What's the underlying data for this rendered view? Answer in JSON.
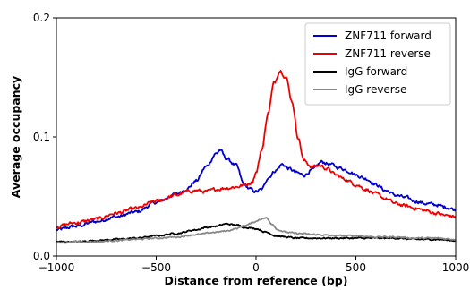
{
  "chart_data": {
    "type": "line",
    "xlabel": "Distance from reference (bp)",
    "ylabel": "Average occupancy",
    "xlim": [
      -1000,
      1000
    ],
    "ylim": [
      0,
      0.2
    ],
    "xticks": [
      -1000,
      -500,
      0,
      500,
      1000
    ],
    "xtick_labels": [
      "−1000",
      "−500",
      "0",
      "500",
      "1000"
    ],
    "yticks": [
      0,
      0.1,
      0.2
    ],
    "ytick_labels": [
      "0.0",
      "0.1",
      "0.2"
    ],
    "grid": false,
    "legend_position": "top-right",
    "series": [
      {
        "name": "ZNF711 forward",
        "color": "#0000cc",
        "points": [
          [
            -1000,
            0.022
          ],
          [
            -900,
            0.025
          ],
          [
            -800,
            0.029
          ],
          [
            -700,
            0.033
          ],
          [
            -600,
            0.037
          ],
          [
            -500,
            0.045
          ],
          [
            -400,
            0.052
          ],
          [
            -350,
            0.056
          ],
          [
            -300,
            0.063
          ],
          [
            -250,
            0.075
          ],
          [
            -200,
            0.086
          ],
          [
            -180,
            0.089
          ],
          [
            -150,
            0.082
          ],
          [
            -100,
            0.076
          ],
          [
            -60,
            0.06
          ],
          [
            -30,
            0.056
          ],
          [
            0,
            0.054
          ],
          [
            30,
            0.056
          ],
          [
            60,
            0.066
          ],
          [
            100,
            0.072
          ],
          [
            130,
            0.077
          ],
          [
            170,
            0.073
          ],
          [
            200,
            0.07
          ],
          [
            240,
            0.068
          ],
          [
            280,
            0.072
          ],
          [
            330,
            0.079
          ],
          [
            370,
            0.077
          ],
          [
            420,
            0.074
          ],
          [
            470,
            0.071
          ],
          [
            500,
            0.068
          ],
          [
            550,
            0.065
          ],
          [
            600,
            0.06
          ],
          [
            650,
            0.055
          ],
          [
            700,
            0.051
          ],
          [
            750,
            0.049
          ],
          [
            800,
            0.046
          ],
          [
            850,
            0.044
          ],
          [
            900,
            0.043
          ],
          [
            950,
            0.041
          ],
          [
            1000,
            0.039
          ]
        ]
      },
      {
        "name": "ZNF711 reverse",
        "color": "#ee0000",
        "points": [
          [
            -1000,
            0.025
          ],
          [
            -900,
            0.028
          ],
          [
            -800,
            0.031
          ],
          [
            -700,
            0.036
          ],
          [
            -600,
            0.04
          ],
          [
            -500,
            0.046
          ],
          [
            -400,
            0.051
          ],
          [
            -350,
            0.054
          ],
          [
            -300,
            0.055
          ],
          [
            -250,
            0.054
          ],
          [
            -200,
            0.056
          ],
          [
            -150,
            0.057
          ],
          [
            -100,
            0.058
          ],
          [
            -50,
            0.06
          ],
          [
            -20,
            0.062
          ],
          [
            0,
            0.07
          ],
          [
            30,
            0.09
          ],
          [
            60,
            0.12
          ],
          [
            90,
            0.145
          ],
          [
            120,
            0.156
          ],
          [
            150,
            0.15
          ],
          [
            180,
            0.13
          ],
          [
            210,
            0.1
          ],
          [
            240,
            0.08
          ],
          [
            280,
            0.075
          ],
          [
            320,
            0.076
          ],
          [
            360,
            0.073
          ],
          [
            400,
            0.068
          ],
          [
            450,
            0.064
          ],
          [
            500,
            0.06
          ],
          [
            550,
            0.056
          ],
          [
            600,
            0.052
          ],
          [
            650,
            0.048
          ],
          [
            700,
            0.044
          ],
          [
            750,
            0.042
          ],
          [
            800,
            0.04
          ],
          [
            850,
            0.038
          ],
          [
            900,
            0.036
          ],
          [
            950,
            0.034
          ],
          [
            1000,
            0.033
          ]
        ]
      },
      {
        "name": "IgG forward",
        "color": "#000000",
        "points": [
          [
            -1000,
            0.012
          ],
          [
            -900,
            0.012
          ],
          [
            -800,
            0.013
          ],
          [
            -700,
            0.014
          ],
          [
            -600,
            0.015
          ],
          [
            -500,
            0.017
          ],
          [
            -400,
            0.019
          ],
          [
            -300,
            0.022
          ],
          [
            -250,
            0.024
          ],
          [
            -200,
            0.025
          ],
          [
            -150,
            0.027
          ],
          [
            -100,
            0.026
          ],
          [
            -50,
            0.024
          ],
          [
            0,
            0.023
          ],
          [
            50,
            0.02
          ],
          [
            100,
            0.017
          ],
          [
            150,
            0.016
          ],
          [
            200,
            0.015
          ],
          [
            300,
            0.015
          ],
          [
            400,
            0.015
          ],
          [
            500,
            0.015
          ],
          [
            600,
            0.015
          ],
          [
            700,
            0.015
          ],
          [
            800,
            0.014
          ],
          [
            900,
            0.014
          ],
          [
            1000,
            0.013
          ]
        ]
      },
      {
        "name": "IgG reverse",
        "color": "#888888",
        "points": [
          [
            -1000,
            0.011
          ],
          [
            -900,
            0.012
          ],
          [
            -800,
            0.012
          ],
          [
            -700,
            0.013
          ],
          [
            -600,
            0.014
          ],
          [
            -500,
            0.015
          ],
          [
            -400,
            0.016
          ],
          [
            -300,
            0.018
          ],
          [
            -200,
            0.02
          ],
          [
            -150,
            0.021
          ],
          [
            -100,
            0.023
          ],
          [
            -50,
            0.026
          ],
          [
            0,
            0.029
          ],
          [
            20,
            0.031
          ],
          [
            50,
            0.032
          ],
          [
            80,
            0.027
          ],
          [
            110,
            0.022
          ],
          [
            150,
            0.02
          ],
          [
            200,
            0.019
          ],
          [
            300,
            0.018
          ],
          [
            400,
            0.017
          ],
          [
            500,
            0.017
          ],
          [
            600,
            0.016
          ],
          [
            700,
            0.016
          ],
          [
            800,
            0.015
          ],
          [
            900,
            0.015
          ],
          [
            1000,
            0.014
          ]
        ]
      }
    ]
  }
}
